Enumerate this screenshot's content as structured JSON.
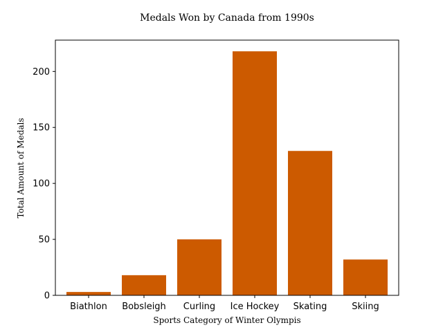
{
  "chart_data": {
    "type": "bar",
    "title": "Medals Won by Canada from 1990s",
    "xlabel": "Sports Category of Winter Olympis",
    "ylabel": "Total Amount of Medals",
    "categories": [
      "Biathlon",
      "Bobsleigh",
      "Curling",
      "Ice Hockey",
      "Skating",
      "Skiing"
    ],
    "values": [
      3,
      18,
      50,
      218,
      129,
      32
    ],
    "ylim": [
      0,
      228
    ],
    "yticks": [
      0,
      50,
      100,
      150,
      200
    ],
    "bar_color": "#cc5a00",
    "grid": false,
    "legend": "none"
  }
}
